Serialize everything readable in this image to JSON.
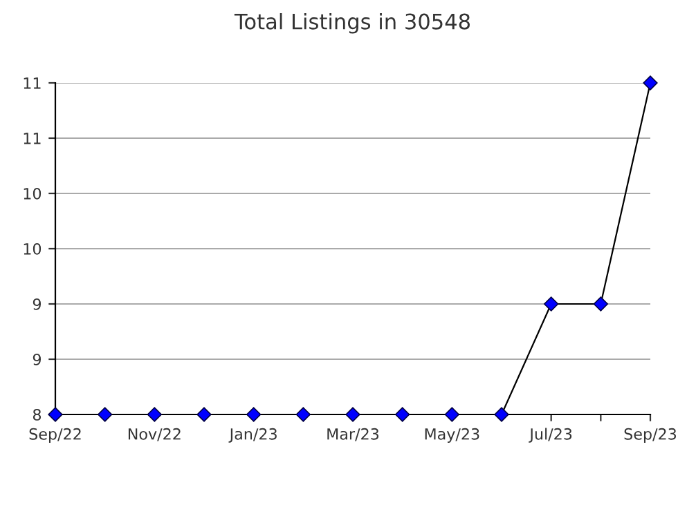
{
  "chart_data": {
    "type": "line",
    "title": "Total Listings in 30548",
    "categories": [
      "Sep/22",
      null,
      "Nov/22",
      null,
      "Jan/23",
      null,
      "Mar/23",
      null,
      "May/23",
      null,
      "Jul/23",
      null,
      "Sep/23"
    ],
    "series": [
      {
        "color": "#0000ff",
        "values": [
          8,
          8,
          8,
          8,
          8,
          8,
          8,
          8,
          8,
          8,
          9,
          9,
          11
        ]
      }
    ],
    "ylim": [
      8,
      11
    ],
    "yticks": [
      8,
      {
        "value": 8.5,
        "label": "9"
      },
      9,
      {
        "value": 9.5,
        "label": "10"
      },
      10,
      {
        "value": 10.5,
        "label": "11"
      },
      11
    ],
    "grid": "y",
    "marker": "diamond",
    "line_style": "solid"
  }
}
